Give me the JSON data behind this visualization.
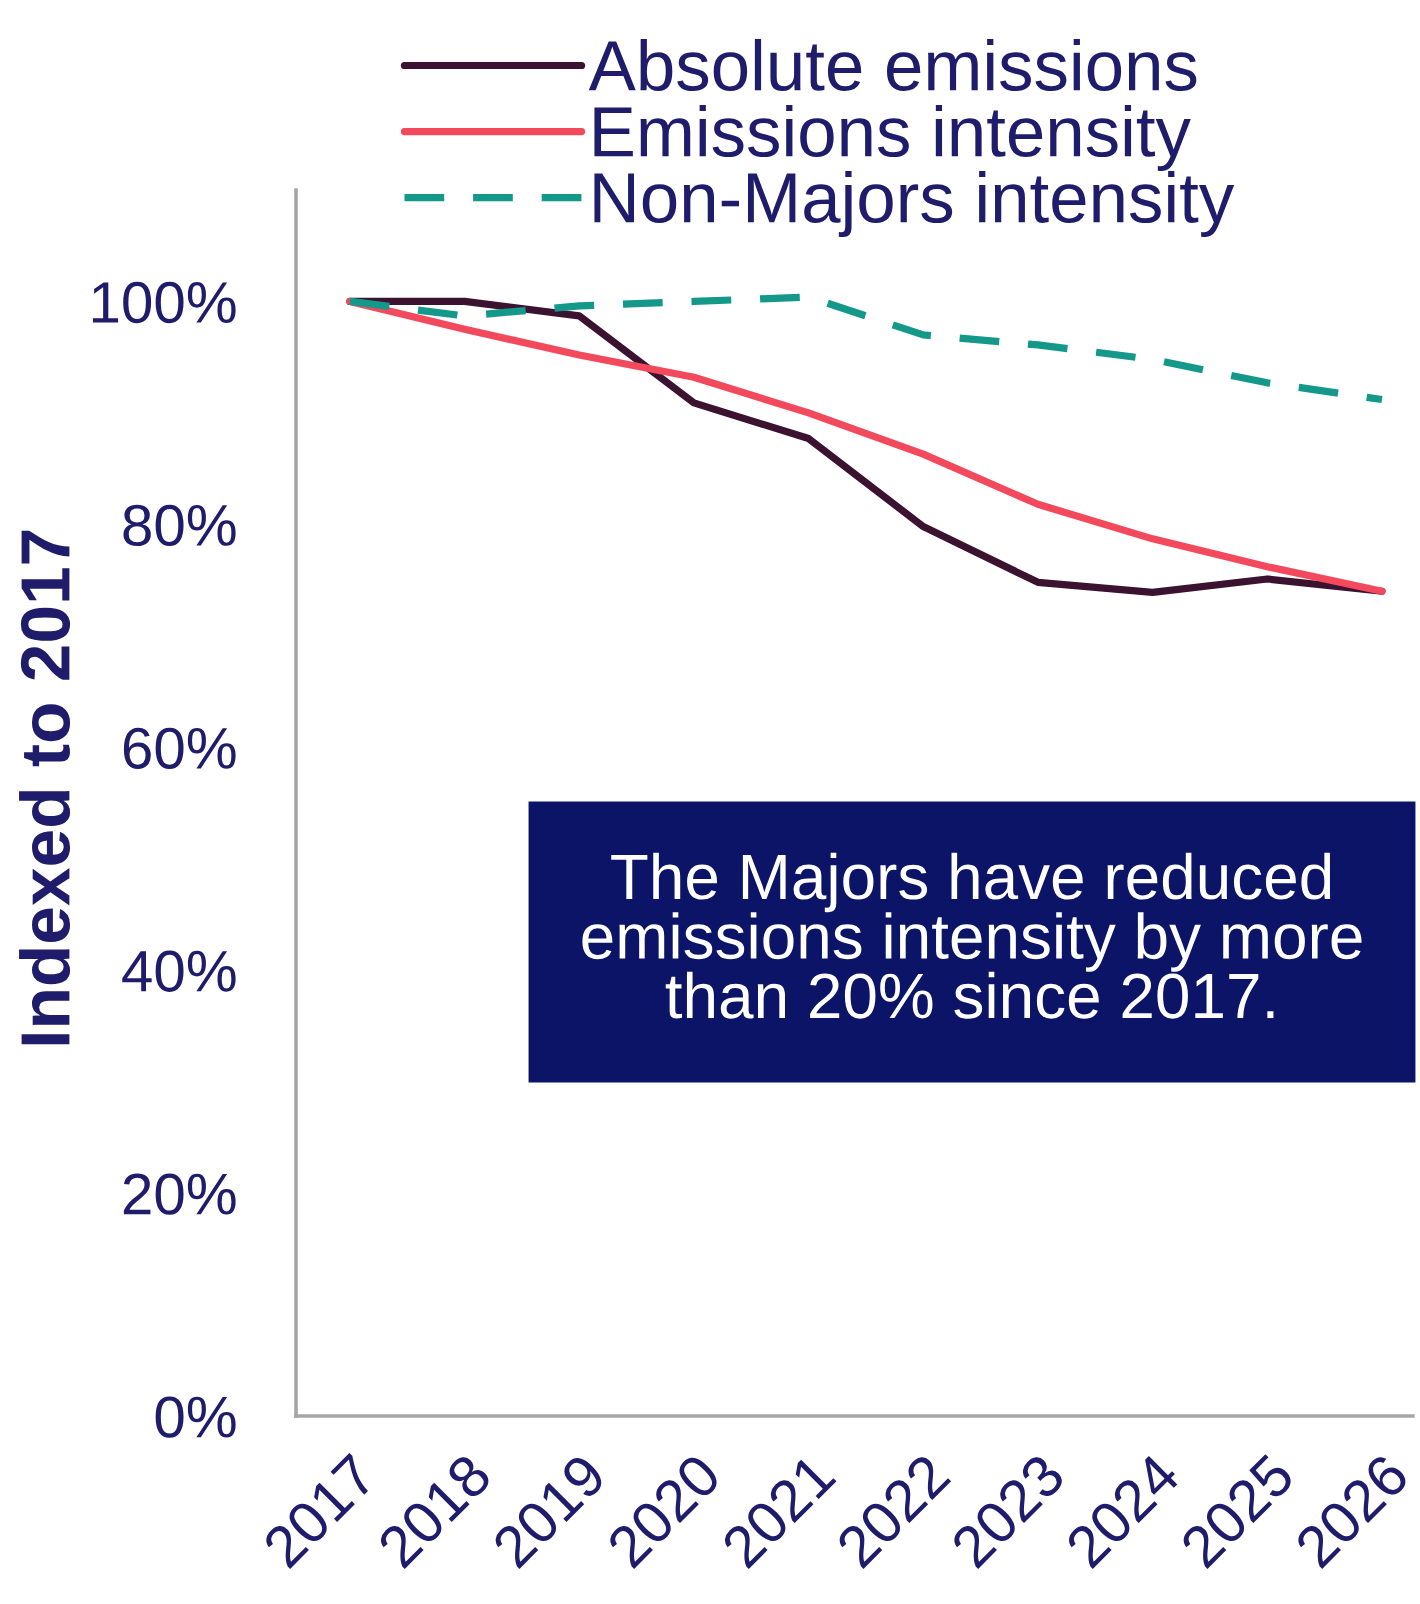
{
  "chart_data": {
    "type": "line",
    "ylabel": "Indexed to 2017",
    "categories": [
      "2017",
      "2018",
      "2019",
      "2020",
      "2021",
      "2022",
      "2023",
      "2024",
      "2025",
      "2026"
    ],
    "series": [
      {
        "name": "Absolute emissions",
        "color": "#3b1230",
        "line_style": "solid",
        "values": [
          100,
          100,
          98.7,
          90.9,
          87.7,
          79.8,
          74.8,
          73.9,
          75.1,
          74.0
        ]
      },
      {
        "name": "Emissions intensity",
        "color": "#f24a5c",
        "line_style": "solid",
        "values": [
          100,
          97.5,
          95.2,
          93.2,
          90.0,
          86.3,
          81.8,
          78.7,
          76.2,
          74.0
        ]
      },
      {
        "name": "Non-Majors intensity",
        "color": "#14988a",
        "line_style": "dashed",
        "values": [
          100,
          98.7,
          99.6,
          100.0,
          100.4,
          97.0,
          96.1,
          94.8,
          92.7,
          91.2
        ]
      }
    ],
    "ylim": [
      0,
      110
    ],
    "yticks": [
      {
        "value": 0,
        "label": "0%"
      },
      {
        "value": 20,
        "label": "20%"
      },
      {
        "value": 40,
        "label": "40%"
      },
      {
        "value": 60,
        "label": "60%"
      },
      {
        "value": 80,
        "label": "80%"
      },
      {
        "value": 100,
        "label": "100%"
      }
    ],
    "legend": "top",
    "annotations": [
      "The Majors have reduced\nemissions intensity by more\nthan 20% since 2017."
    ]
  }
}
